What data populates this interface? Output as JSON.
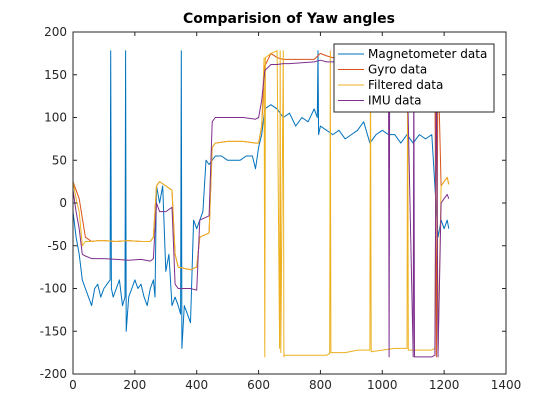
{
  "chart_data": {
    "type": "line",
    "title": "Comparision of Yaw angles",
    "xlabel": "",
    "ylabel": "",
    "xlim": [
      0,
      1400
    ],
    "ylim": [
      -200,
      200
    ],
    "x_ticks": [
      0,
      200,
      400,
      600,
      800,
      1000,
      1200,
      1400
    ],
    "y_ticks": [
      -200,
      -150,
      -100,
      -50,
      0,
      50,
      100,
      150,
      200
    ],
    "grid": false,
    "legend_position": "top-right",
    "series": [
      {
        "name": "Magnetometer data",
        "color": "#0072BD",
        "x": [
          0,
          10,
          20,
          30,
          40,
          50,
          60,
          70,
          80,
          90,
          100,
          110,
          120,
          122,
          124,
          130,
          140,
          150,
          160,
          168,
          170,
          172,
          180,
          190,
          200,
          210,
          220,
          230,
          240,
          250,
          260,
          265,
          270,
          280,
          290,
          300,
          310,
          320,
          330,
          340,
          348,
          350,
          352,
          360,
          370,
          380,
          390,
          400,
          410,
          420,
          430,
          440,
          460,
          480,
          500,
          520,
          540,
          560,
          580,
          590,
          600,
          610,
          620,
          640,
          660,
          680,
          700,
          720,
          740,
          760,
          780,
          790,
          792,
          794,
          800,
          820,
          840,
          860,
          880,
          900,
          920,
          940,
          960,
          980,
          1000,
          1020,
          1040,
          1060,
          1080,
          1090,
          1100,
          1120,
          1140,
          1160,
          1180,
          1190,
          1200,
          1210,
          1215
        ],
        "y": [
          -10,
          -40,
          -60,
          -90,
          -100,
          -110,
          -120,
          -100,
          -95,
          -110,
          -100,
          -95,
          -90,
          178,
          -100,
          -110,
          -100,
          -90,
          -120,
          -110,
          178,
          -150,
          -110,
          -100,
          -90,
          -100,
          -95,
          -110,
          -120,
          -100,
          -90,
          -110,
          20,
          0,
          20,
          -80,
          -60,
          -120,
          -110,
          -120,
          -130,
          178,
          -170,
          -120,
          -130,
          -140,
          -20,
          -30,
          -20,
          -10,
          50,
          45,
          55,
          55,
          50,
          50,
          50,
          55,
          55,
          40,
          65,
          80,
          110,
          115,
          110,
          100,
          105,
          90,
          100,
          95,
          110,
          100,
          178,
          80,
          90,
          85,
          80,
          85,
          75,
          80,
          85,
          95,
          70,
          80,
          85,
          80,
          80,
          70,
          80,
          75,
          70,
          80,
          75,
          80,
          -40,
          -20,
          -30,
          -20,
          -30
        ]
      },
      {
        "name": "Gyro data",
        "color": "#D95319",
        "x": [
          0,
          20,
          40,
          60,
          80,
          100,
          140,
          180,
          220,
          250,
          260,
          270,
          280,
          300,
          320,
          330,
          340,
          380,
          400,
          410,
          440,
          450,
          460,
          500,
          550,
          590,
          600,
          610,
          620,
          640,
          660,
          680,
          700,
          740,
          780,
          800,
          820,
          840,
          880,
          920,
          960,
          1000,
          1040,
          1080,
          1100,
          1120,
          1140,
          1160,
          1170,
          1175,
          1180,
          1190,
          1200,
          1210,
          1215
        ],
        "y": [
          25,
          5,
          -40,
          -45,
          -44,
          -44,
          -45,
          -44,
          -45,
          -45,
          -40,
          20,
          25,
          20,
          15,
          -60,
          -75,
          -78,
          -75,
          -40,
          -35,
          65,
          70,
          72,
          72,
          70,
          70,
          90,
          160,
          175,
          170,
          168,
          168,
          168,
          168,
          175,
          172,
          170,
          170,
          172,
          170,
          170,
          170,
          168,
          170,
          170,
          168,
          168,
          150,
          -180,
          170,
          20,
          25,
          30,
          22
        ]
      },
      {
        "name": "Filtered data",
        "color": "#EDB120",
        "x": [
          0,
          10,
          20,
          30,
          40,
          60,
          80,
          100,
          140,
          180,
          220,
          250,
          260,
          270,
          280,
          300,
          320,
          330,
          340,
          380,
          400,
          410,
          440,
          450,
          460,
          500,
          550,
          590,
          600,
          610,
          618,
          620,
          622,
          640,
          660,
          668,
          670,
          672,
          680,
          682,
          684,
          700,
          740,
          780,
          800,
          820,
          830,
          832,
          834,
          840,
          880,
          920,
          960,
          962,
          964,
          1000,
          1040,
          1080,
          1082,
          1084,
          1100,
          1120,
          1140,
          1160,
          1170,
          1175,
          1180,
          1190,
          1200,
          1210,
          1215
        ],
        "y": [
          25,
          5,
          -10,
          -50,
          -45,
          -45,
          -44,
          -44,
          -45,
          -44,
          -45,
          -45,
          -40,
          20,
          25,
          20,
          15,
          -60,
          -75,
          -78,
          -75,
          -40,
          -35,
          65,
          70,
          72,
          72,
          70,
          70,
          90,
          170,
          -180,
          170,
          175,
          178,
          -170,
          178,
          -175,
          178,
          -180,
          -178,
          -178,
          -178,
          -178,
          -178,
          -178,
          -176,
          178,
          -175,
          -175,
          -175,
          -172,
          -172,
          178,
          -174,
          -172,
          -170,
          -170,
          178,
          -172,
          -172,
          -172,
          -172,
          -172,
          -170,
          170,
          -175,
          20,
          25,
          30,
          22
        ]
      },
      {
        "name": "IMU data",
        "color": "#7E2F8E",
        "x": [
          0,
          10,
          20,
          30,
          40,
          60,
          80,
          100,
          140,
          180,
          220,
          250,
          260,
          270,
          280,
          300,
          320,
          330,
          340,
          380,
          400,
          410,
          440,
          450,
          460,
          500,
          550,
          590,
          600,
          610,
          620,
          640,
          660,
          680,
          700,
          740,
          780,
          800,
          820,
          840,
          880,
          920,
          960,
          1000,
          1020,
          1022,
          1024,
          1060,
          1080,
          1100,
          1102,
          1104,
          1140,
          1160,
          1170,
          1175,
          1180,
          1190,
          1200,
          1210,
          1215
        ],
        "y": [
          15,
          -10,
          -30,
          -60,
          -62,
          -65,
          -65,
          -65,
          -66,
          -67,
          -66,
          -68,
          -65,
          0,
          -10,
          -10,
          -5,
          -95,
          -100,
          -100,
          -102,
          -20,
          -15,
          95,
          100,
          100,
          100,
          98,
          100,
          120,
          155,
          162,
          162,
          163,
          163,
          164,
          165,
          167,
          165,
          165,
          168,
          167,
          166,
          166,
          166,
          -180,
          166,
          166,
          168,
          -180,
          168,
          -180,
          -180,
          -180,
          -178,
          170,
          -180,
          0,
          5,
          10,
          5
        ]
      }
    ]
  }
}
